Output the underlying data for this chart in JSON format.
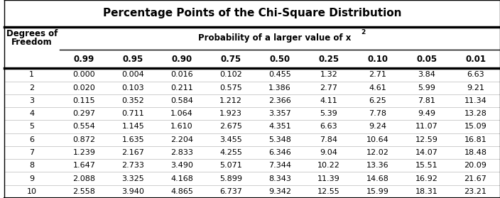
{
  "title": "Percentage Points of the Chi-Square Distribution",
  "col_header_line1": "Degrees of",
  "col_header_line2": "Freedom",
  "prob_header": "Probability of a larger value of x",
  "prob_superscript": "2",
  "prob_values": [
    "0.99",
    "0.95",
    "0.90",
    "0.75",
    "0.50",
    "0.25",
    "0.10",
    "0.05",
    "0.01"
  ],
  "degrees": [
    1,
    2,
    3,
    4,
    5,
    6,
    7,
    8,
    9,
    10
  ],
  "table_data": [
    [
      "0.000",
      "0.004",
      "0.016",
      "0.102",
      "0.455",
      "1.32",
      "2.71",
      "3.84",
      "6.63"
    ],
    [
      "0.020",
      "0.103",
      "0.211",
      "0.575",
      "1.386",
      "2.77",
      "4.61",
      "5.99",
      "9.21"
    ],
    [
      "0.115",
      "0.352",
      "0.584",
      "1.212",
      "2.366",
      "4.11",
      "6.25",
      "7.81",
      "11.34"
    ],
    [
      "0.297",
      "0.711",
      "1.064",
      "1.923",
      "3.357",
      "5.39",
      "7.78",
      "9.49",
      "13.28"
    ],
    [
      "0.554",
      "1.145",
      "1.610",
      "2.675",
      "4.351",
      "6.63",
      "9.24",
      "11.07",
      "15.09"
    ],
    [
      "0.872",
      "1.635",
      "2.204",
      "3.455",
      "5.348",
      "7.84",
      "10.64",
      "12.59",
      "16.81"
    ],
    [
      "1.239",
      "2.167",
      "2.833",
      "4.255",
      "6.346",
      "9.04",
      "12.02",
      "14.07",
      "18.48"
    ],
    [
      "1.647",
      "2.733",
      "3.490",
      "5.071",
      "7.344",
      "10.22",
      "13.36",
      "15.51",
      "20.09"
    ],
    [
      "2.088",
      "3.325",
      "4.168",
      "5.899",
      "8.343",
      "11.39",
      "14.68",
      "16.92",
      "21.67"
    ],
    [
      "2.558",
      "3.940",
      "4.865",
      "6.737",
      "9.342",
      "12.55",
      "15.99",
      "18.31",
      "23.21"
    ]
  ],
  "bg_color": "#ffffff",
  "text_color": "#000000",
  "title_fontsize": 11,
  "header_fontsize": 8.5,
  "cell_fontsize": 8
}
